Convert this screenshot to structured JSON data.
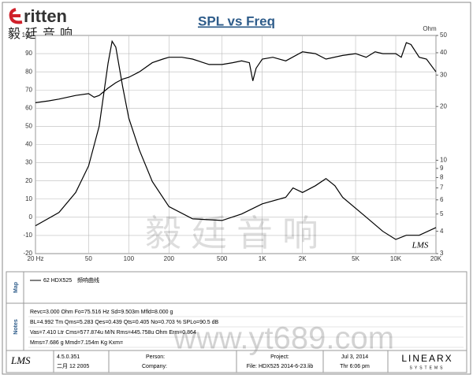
{
  "header": {
    "logo": "ritten",
    "logo_cn": "毅廷音响"
  },
  "chart_data": {
    "type": "line",
    "title": "SPL vs Freq",
    "y2_label": "Ohm",
    "corner_mark": "LMS",
    "xscale": "log",
    "y2scale": "log",
    "grid": true,
    "xlim": [
      20,
      20000
    ],
    "ylim": [
      -20,
      100
    ],
    "y2lim": [
      3,
      50
    ],
    "xticks": [
      {
        "value": 20,
        "label": "20 Hz"
      },
      50,
      100,
      200,
      500,
      {
        "value": 1000,
        "label": "1K"
      },
      {
        "value": 2000,
        "label": "2K"
      },
      {
        "value": 5000,
        "label": "5K"
      },
      {
        "value": 10000,
        "label": "10K"
      },
      {
        "value": 20000,
        "label": "20K"
      }
    ],
    "yticks": [
      -20,
      -10,
      0,
      10,
      20,
      30,
      40,
      50,
      60,
      70,
      80,
      90,
      100
    ],
    "y2ticks": [
      3,
      4,
      5,
      6,
      7,
      8,
      9,
      10,
      20,
      30,
      40,
      50
    ],
    "series": [
      {
        "name": "62  HDX525",
        "color": "#000000",
        "x": [
          20,
          25,
          30,
          40,
          50,
          55,
          60,
          70,
          80,
          90,
          100,
          120,
          150,
          180,
          200,
          250,
          300,
          400,
          500,
          600,
          700,
          800,
          850,
          900,
          1000,
          1200,
          1500,
          2000,
          2500,
          3000,
          4000,
          5000,
          6000,
          7000,
          8000,
          10000,
          11000,
          12000,
          13000,
          15000,
          17000,
          20000
        ],
        "values": [
          63,
          64,
          65,
          67,
          68,
          66,
          67,
          71,
          74,
          76,
          77,
          80,
          85,
          87,
          88,
          88,
          87,
          84,
          84,
          85,
          86,
          85,
          75,
          82,
          87,
          88,
          86,
          91,
          90,
          87,
          89,
          90,
          88,
          91,
          90,
          90,
          88,
          96,
          95,
          88,
          87,
          80
        ]
      },
      {
        "color": "#000000",
        "axis": "y2",
        "x": [
          20,
          30,
          40,
          50,
          60,
          70,
          75,
          80,
          90,
          100,
          120,
          150,
          200,
          300,
          500,
          700,
          1000,
          1500,
          1700,
          2000,
          2500,
          3000,
          3500,
          4000,
          6000,
          8000,
          10000,
          12000,
          15000,
          20000
        ],
        "values": [
          4.3,
          5.1,
          6.6,
          9.3,
          15.5,
          35,
          46.4,
          43,
          25.8,
          17.2,
          11.4,
          7.6,
          5.5,
          4.7,
          4.6,
          5.0,
          5.7,
          6.2,
          7.0,
          6.6,
          7.2,
          7.9,
          7.2,
          6.2,
          4.8,
          4.0,
          3.6,
          3.8,
          3.8,
          4.2
        ]
      }
    ]
  },
  "map": {
    "label": "Map",
    "legend_note": "频响曲线"
  },
  "notes": {
    "label": "Notes",
    "lines": [
      "Revc=3.000 Ohm  Fo=75.516 Hz  Sd=9.503m  Mfld=8.000 g",
      "BL=4.992 Tm  Qms=5.283  Qes=0.439  Qts=0.405  No=0.703 %  SPLo=90.5 dB",
      "Vas=7.410 Ltr  Cms=577.874u M/N  Rms=445.758u Ohm  Erm=0.864",
      "Mms=7.686 g  Mmd=7.154m Kg  Kxm="
    ]
  },
  "footer": {
    "logo": "LMS",
    "version": "4.5.0.351",
    "build_date": "二月 12 2005",
    "person": "Person:",
    "company": "Company:",
    "project": "Project:",
    "file": "File: HDX525    2014-6-23.lib",
    "date": "Jul  3, 2014",
    "time": "Thr  6:06 pm",
    "brand": "LINEARX",
    "brand_sub": "SYSTEMS"
  },
  "watermark": {
    "cn": "毅廷音响",
    "url": "www.yt689.com"
  }
}
